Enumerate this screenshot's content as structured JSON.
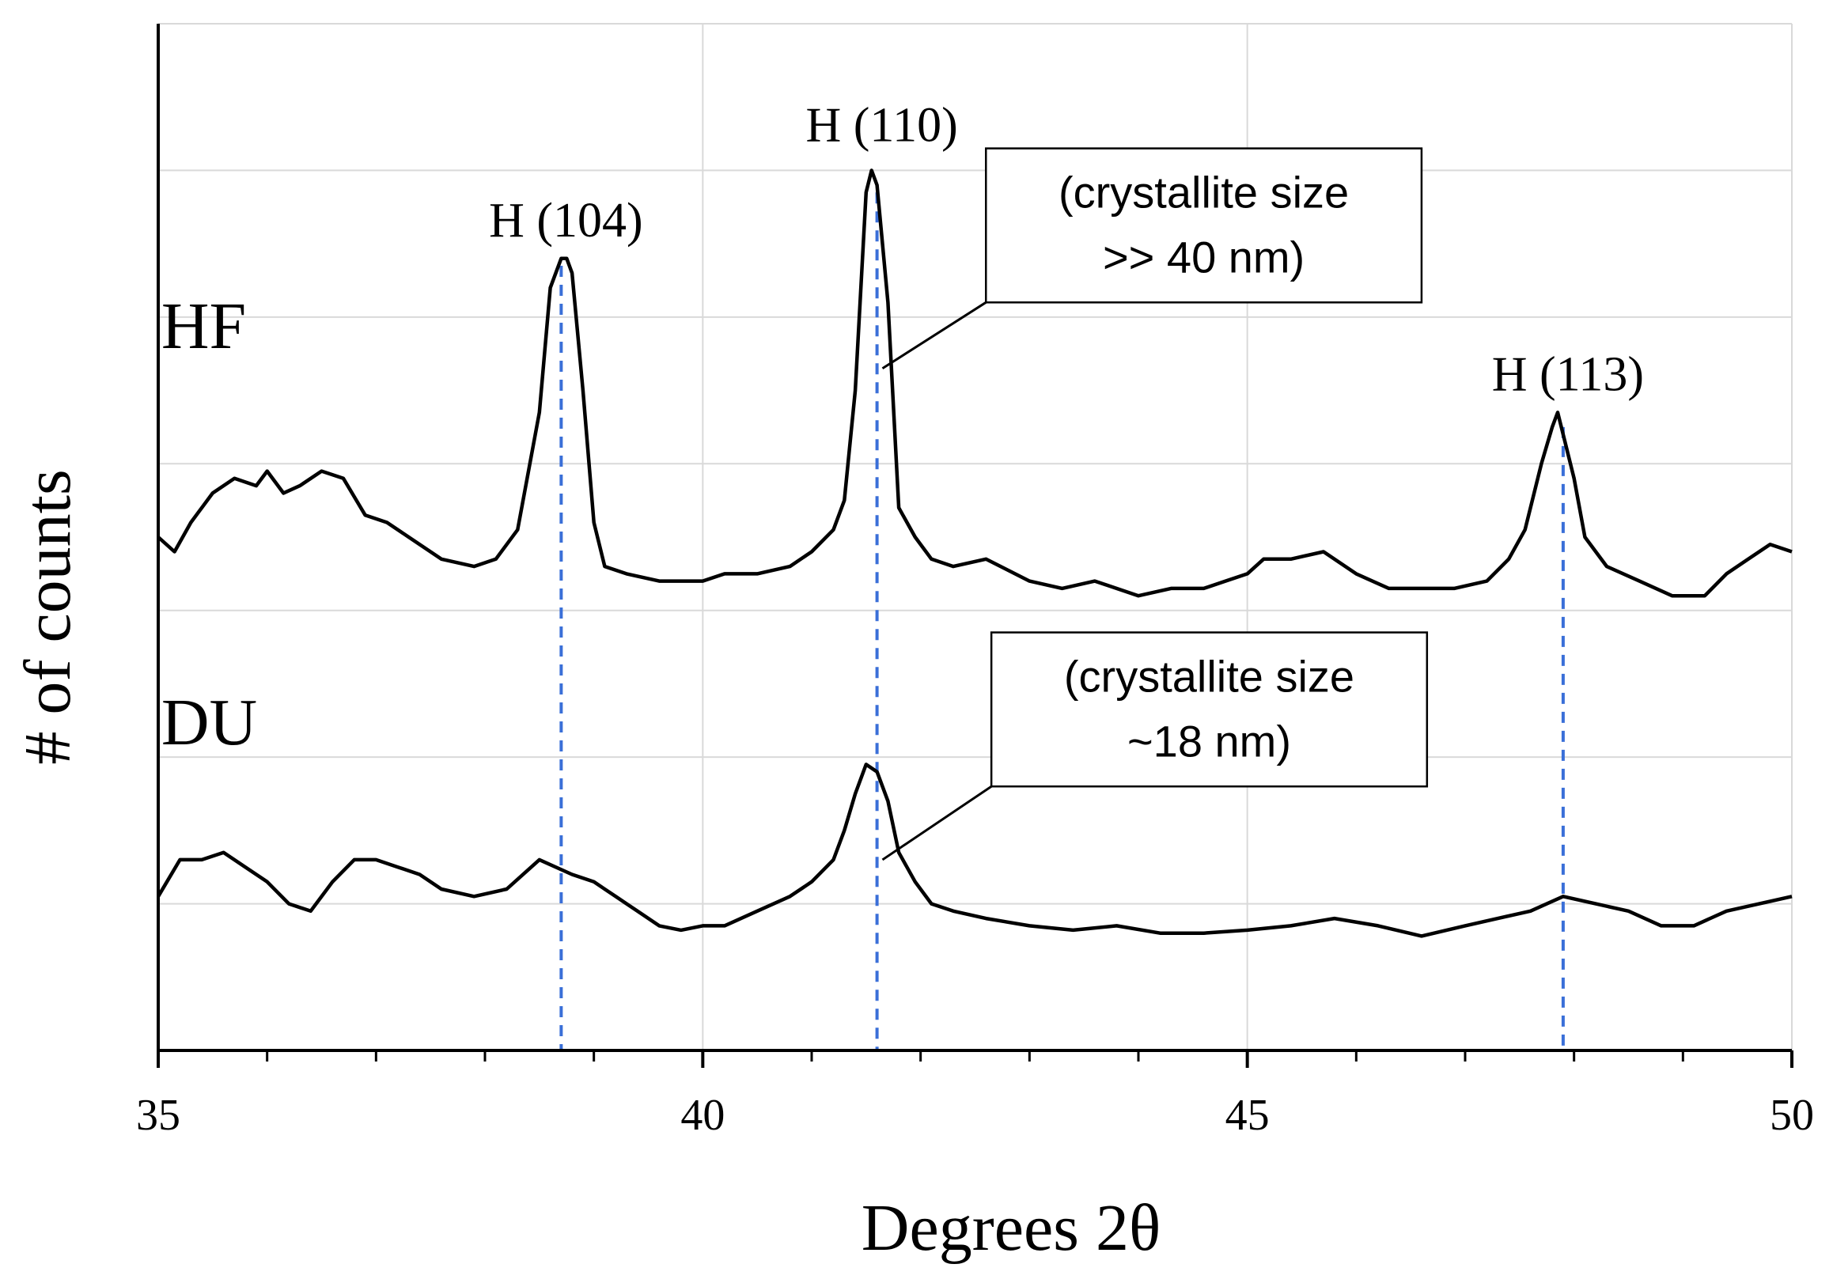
{
  "chart_data": {
    "type": "line",
    "title": "",
    "xlabel": "Degrees 2θ",
    "ylabel": "# of counts",
    "xlim": [
      35,
      50
    ],
    "ylim": [
      0,
      7
    ],
    "x_ticks": [
      35,
      40,
      45,
      50
    ],
    "x_minor_ticks": [
      36,
      37,
      38,
      39,
      41,
      42,
      43,
      44,
      46,
      47,
      48,
      49
    ],
    "y_ticks_labeled": false,
    "grid": true,
    "colors": {
      "line": "#000000",
      "marker_line": "#3a6fd8",
      "grid": "#d9d9d9"
    },
    "series": [
      {
        "name": "HF",
        "label": "HF",
        "x": [
          35,
          35.15,
          35.3,
          35.5,
          35.7,
          35.9,
          36.0,
          36.15,
          36.3,
          36.5,
          36.7,
          36.9,
          37.1,
          37.3,
          37.6,
          37.9,
          38.1,
          38.3,
          38.5,
          38.6,
          38.7,
          38.75,
          38.8,
          38.9,
          39.0,
          39.1,
          39.3,
          39.6,
          39.9,
          40.0,
          40.2,
          40.5,
          40.8,
          41.0,
          41.2,
          41.3,
          41.4,
          41.5,
          41.55,
          41.6,
          41.7,
          41.8,
          41.95,
          42.1,
          42.3,
          42.6,
          43.0,
          43.3,
          43.6,
          44.0,
          44.3,
          44.6,
          44.8,
          45.0,
          45.15,
          45.4,
          45.7,
          46.0,
          46.3,
          46.6,
          46.9,
          47.2,
          47.4,
          47.55,
          47.7,
          47.8,
          47.85,
          47.9,
          48.0,
          48.1,
          48.3,
          48.6,
          48.9,
          49.2,
          49.4,
          49.6,
          49.8,
          50.0
        ],
        "y": [
          3.5,
          3.4,
          3.6,
          3.8,
          3.9,
          3.85,
          3.95,
          3.8,
          3.85,
          3.95,
          3.9,
          3.65,
          3.6,
          3.5,
          3.35,
          3.3,
          3.35,
          3.55,
          4.35,
          5.2,
          5.4,
          5.4,
          5.3,
          4.5,
          3.6,
          3.3,
          3.25,
          3.2,
          3.2,
          3.2,
          3.25,
          3.25,
          3.3,
          3.4,
          3.55,
          3.75,
          4.5,
          5.85,
          6.0,
          5.9,
          5.1,
          3.7,
          3.5,
          3.35,
          3.3,
          3.35,
          3.2,
          3.15,
          3.2,
          3.1,
          3.15,
          3.15,
          3.2,
          3.25,
          3.35,
          3.35,
          3.4,
          3.25,
          3.15,
          3.15,
          3.15,
          3.2,
          3.35,
          3.55,
          4.0,
          4.25,
          4.35,
          4.2,
          3.9,
          3.5,
          3.3,
          3.2,
          3.1,
          3.1,
          3.25,
          3.35,
          3.45,
          3.4
        ]
      },
      {
        "name": "DU",
        "label": "DU",
        "x": [
          35,
          35.2,
          35.4,
          35.6,
          35.8,
          36.0,
          36.2,
          36.4,
          36.6,
          36.8,
          37.0,
          37.2,
          37.4,
          37.6,
          37.9,
          38.2,
          38.5,
          38.8,
          39.0,
          39.2,
          39.4,
          39.6,
          39.8,
          40.0,
          40.2,
          40.5,
          40.8,
          41.0,
          41.2,
          41.3,
          41.4,
          41.5,
          41.6,
          41.7,
          41.8,
          41.95,
          42.1,
          42.3,
          42.6,
          43.0,
          43.4,
          43.8,
          44.2,
          44.6,
          45.0,
          45.4,
          45.8,
          46.2,
          46.6,
          47.0,
          47.3,
          47.6,
          47.9,
          48.2,
          48.5,
          48.8,
          49.1,
          49.4,
          49.7,
          50.0
        ],
        "y": [
          1.05,
          1.3,
          1.3,
          1.35,
          1.25,
          1.15,
          1.0,
          0.95,
          1.15,
          1.3,
          1.3,
          1.25,
          1.2,
          1.1,
          1.05,
          1.1,
          1.3,
          1.2,
          1.15,
          1.05,
          0.95,
          0.85,
          0.82,
          0.85,
          0.85,
          0.95,
          1.05,
          1.15,
          1.3,
          1.5,
          1.75,
          1.95,
          1.9,
          1.7,
          1.35,
          1.15,
          1.0,
          0.95,
          0.9,
          0.85,
          0.82,
          0.85,
          0.8,
          0.8,
          0.82,
          0.85,
          0.9,
          0.85,
          0.78,
          0.85,
          0.9,
          0.95,
          1.05,
          1.0,
          0.95,
          0.85,
          0.85,
          0.95,
          1.0,
          1.05
        ]
      }
    ],
    "reference_lines": [
      {
        "x": 38.7,
        "label": "H (104)",
        "label_x": 38.7,
        "label_y": 5.55
      },
      {
        "x": 41.6,
        "label": "H (110)",
        "label_x": 41.6,
        "label_y": 6.2
      },
      {
        "x": 47.9,
        "label": "H (113)",
        "label_x": 47.9,
        "label_y": 4.5
      }
    ],
    "series_labels": [
      {
        "text": "HF",
        "x": 35.5,
        "y": 4.95
      },
      {
        "text": "DU",
        "x": 35.5,
        "y": 2.25
      }
    ],
    "annotations": [
      {
        "lines": [
          "(crystallite size",
          ">> 40 nm)"
        ],
        "box_x": [
          42.6,
          46.6
        ],
        "box_y": [
          5.1,
          6.15
        ],
        "pointer_from": [
          42.6,
          5.1
        ],
        "pointer_to": [
          41.65,
          4.65
        ]
      },
      {
        "lines": [
          "(crystallite size",
          "~18 nm)"
        ],
        "box_x": [
          42.65,
          46.65
        ],
        "box_y": [
          1.8,
          2.85
        ],
        "pointer_from": [
          42.65,
          1.8
        ],
        "pointer_to": [
          41.65,
          1.3
        ]
      }
    ]
  }
}
